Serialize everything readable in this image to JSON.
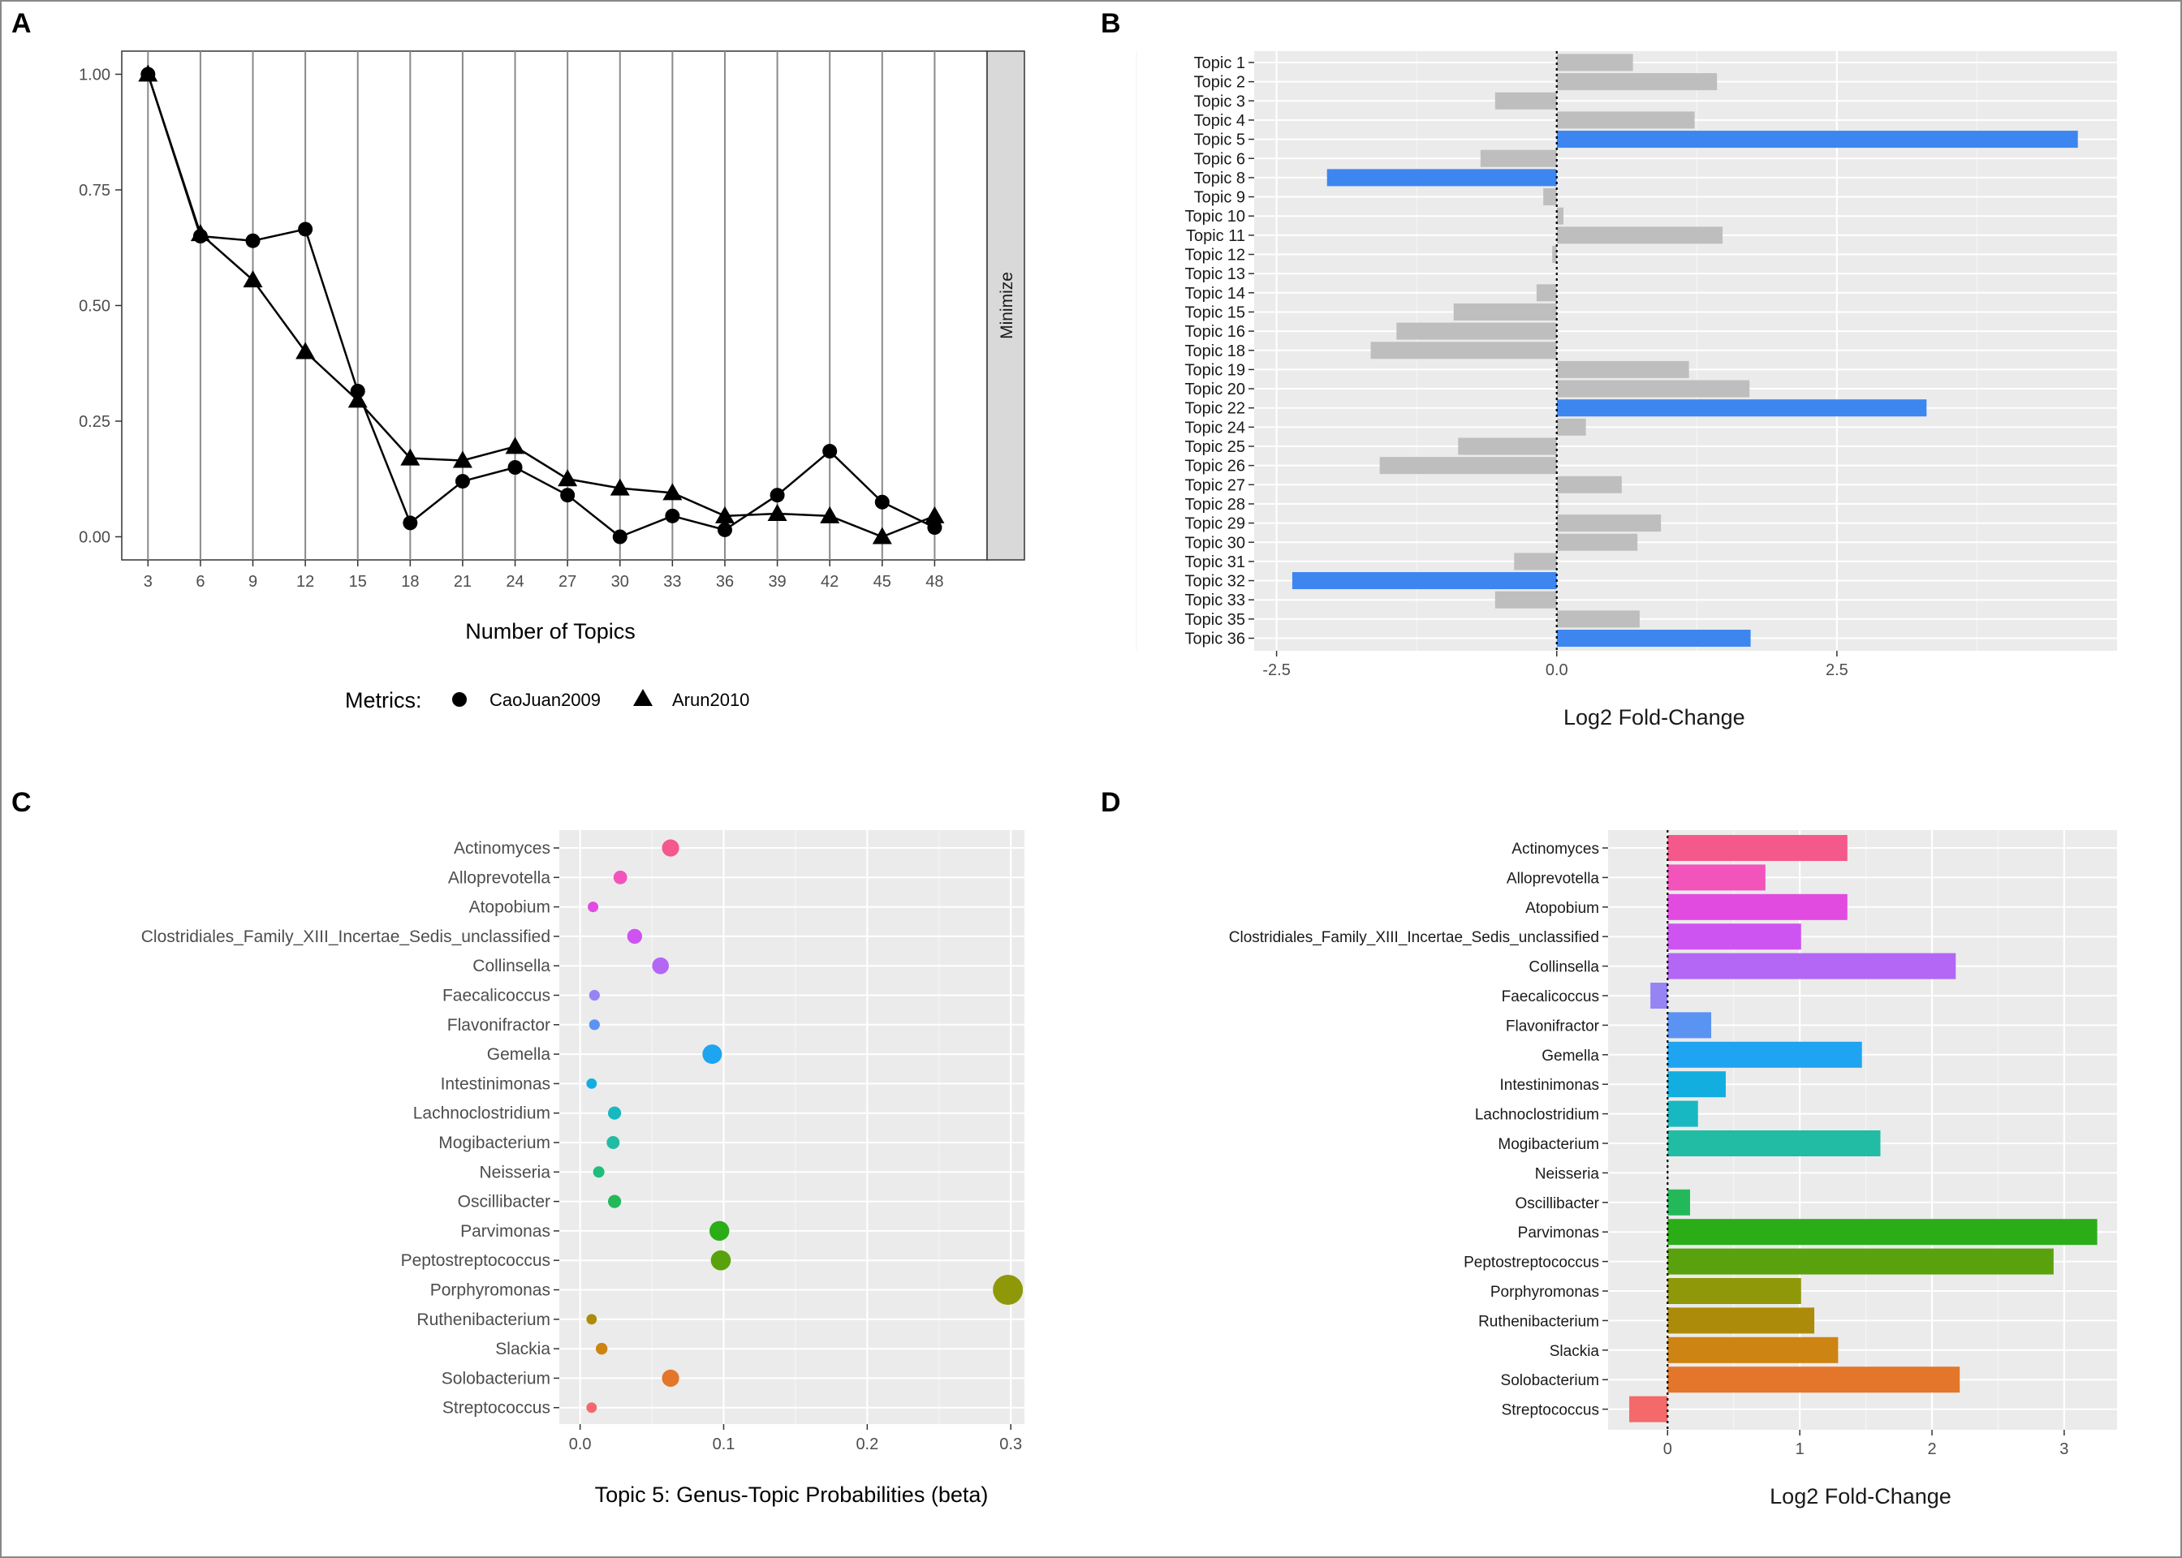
{
  "panels": {
    "A": "A",
    "B": "B",
    "C": "C",
    "D": "D"
  },
  "chart_data": [
    {
      "panel": "A",
      "type": "line",
      "xlabel": "Number of Topics",
      "ylabel": "",
      "facet_strip": "Minimize",
      "x_ticks": [
        "3",
        "6",
        "9",
        "12",
        "15",
        "18",
        "21",
        "24",
        "27",
        "30",
        "33",
        "36",
        "39",
        "42",
        "45",
        "48"
      ],
      "y_ticks": [
        "0.00",
        "0.25",
        "0.50",
        "0.75",
        "1.00"
      ],
      "ylim": [
        -0.05,
        1.05
      ],
      "xlim": [
        1.5,
        51
      ],
      "grid": "vertical",
      "legend": {
        "title": "Metrics:",
        "position": "bottom",
        "entries": [
          {
            "name": "CaoJuan2009",
            "shape": "circle"
          },
          {
            "name": "Arun2010",
            "shape": "triangle"
          }
        ]
      },
      "x": [
        3,
        6,
        9,
        12,
        15,
        18,
        21,
        24,
        27,
        30,
        33,
        36,
        39,
        42,
        45,
        48
      ],
      "series": [
        {
          "name": "CaoJuan2009",
          "shape": "circle",
          "values": [
            1.0,
            0.65,
            0.64,
            0.665,
            0.315,
            0.03,
            0.12,
            0.15,
            0.09,
            0.0,
            0.045,
            0.015,
            0.09,
            0.185,
            0.075,
            0.02
          ]
        },
        {
          "name": "Arun2010",
          "shape": "triangle",
          "values": [
            1.0,
            0.655,
            0.555,
            0.4,
            0.295,
            0.17,
            0.165,
            0.195,
            0.125,
            0.105,
            0.095,
            0.045,
            0.05,
            0.045,
            0.0,
            0.045
          ]
        }
      ]
    },
    {
      "panel": "B",
      "type": "bar",
      "orientation": "horizontal",
      "xlabel": "Log2 Fold-Change",
      "x_ticks": [
        "-2.5",
        "0.0",
        "2.5"
      ],
      "xlim": [
        -2.7,
        5.0
      ],
      "colors": {
        "default": "#bebebe",
        "highlight": "#3d86f0"
      },
      "categories": [
        "Topic 1",
        "Topic 2",
        "Topic 3",
        "Topic 4",
        "Topic 5",
        "Topic 6",
        "Topic 8",
        "Topic 9",
        "Topic 10",
        "Topic 11",
        "Topic 12",
        "Topic 13",
        "Topic 14",
        "Topic 15",
        "Topic 16",
        "Topic 18",
        "Topic 19",
        "Topic 20",
        "Topic 22",
        "Topic 24",
        "Topic 25",
        "Topic 26",
        "Topic 27",
        "Topic 28",
        "Topic 29",
        "Topic 30",
        "Topic 31",
        "Topic 32",
        "Topic 33",
        "Topic 35",
        "Topic 36"
      ],
      "values": [
        0.68,
        1.43,
        -0.55,
        1.23,
        4.65,
        -0.68,
        -2.05,
        -0.12,
        0.06,
        1.48,
        -0.04,
        0.0,
        -0.18,
        -0.92,
        -1.43,
        -1.66,
        1.18,
        1.72,
        3.3,
        0.26,
        -0.88,
        -1.58,
        0.58,
        0.02,
        0.93,
        0.72,
        -0.38,
        -2.36,
        -0.55,
        0.74,
        1.73
      ],
      "highlighted": [
        "Topic 5",
        "Topic 8",
        "Topic 22",
        "Topic 32",
        "Topic 36"
      ]
    },
    {
      "panel": "C",
      "type": "scatter",
      "xlabel": "Topic 5: Genus-Topic Probabilities (beta)",
      "x_ticks": [
        "0.0",
        "0.1",
        "0.2",
        "0.3"
      ],
      "xlim": [
        -0.0145,
        0.3095
      ],
      "categories": [
        "Actinomyces",
        "Alloprevotella",
        "Atopobium",
        "Clostridiales_Family_XIII_Incertae_Sedis_unclassified",
        "Collinsella",
        "Faecalicoccus",
        "Flavonifractor",
        "Gemella",
        "Intestinimonas",
        "Lachnoclostridium",
        "Mogibacterium",
        "Neisseria",
        "Oscillibacter",
        "Parvimonas",
        "Peptostreptococcus",
        "Porphyromonas",
        "Ruthenibacterium",
        "Slackia",
        "Solobacterium",
        "Streptococcus"
      ],
      "values": [
        0.063,
        0.028,
        0.009,
        0.038,
        0.056,
        0.01,
        0.01,
        0.092,
        0.008,
        0.024,
        0.023,
        0.013,
        0.024,
        0.097,
        0.098,
        0.298,
        0.008,
        0.015,
        0.063,
        0.008
      ],
      "colors": [
        "#f5588a",
        "#f254bb",
        "#e24be0",
        "#cd54f0",
        "#b467f5",
        "#9684f5",
        "#5b93f2",
        "#1ea4f0",
        "#13aee0",
        "#18b8c2",
        "#22bba4",
        "#1fbd7c",
        "#23b95a",
        "#2bad17",
        "#59a20d",
        "#8f9809",
        "#ad8b0a",
        "#cd8412",
        "#e3762b",
        "#f4696a"
      ]
    },
    {
      "panel": "D",
      "type": "bar",
      "orientation": "horizontal",
      "xlabel": "Log2 Fold-Change",
      "x_ticks": [
        "0",
        "1",
        "2",
        "3"
      ],
      "xlim": [
        -0.45,
        3.4
      ],
      "categories": [
        "Actinomyces",
        "Alloprevotella",
        "Atopobium",
        "Clostridiales_Family_XIII_Incertae_Sedis_unclassified",
        "Collinsella",
        "Faecalicoccus",
        "Flavonifractor",
        "Gemella",
        "Intestinimonas",
        "Lachnoclostridium",
        "Mogibacterium",
        "Neisseria",
        "Oscillibacter",
        "Parvimonas",
        "Peptostreptococcus",
        "Porphyromonas",
        "Ruthenibacterium",
        "Slackia",
        "Solobacterium",
        "Streptococcus"
      ],
      "values": [
        1.36,
        0.74,
        1.36,
        1.01,
        2.18,
        -0.13,
        0.33,
        1.47,
        0.44,
        0.23,
        1.61,
        0.0,
        0.17,
        3.25,
        2.92,
        1.01,
        1.11,
        1.29,
        2.21,
        -0.29
      ],
      "colors": [
        "#f5588a",
        "#f254bb",
        "#e24be0",
        "#cd54f0",
        "#b467f5",
        "#9684f5",
        "#5b93f2",
        "#1ea4f0",
        "#13aee0",
        "#18b8c2",
        "#22bba4",
        "#1fbd7c",
        "#23b95a",
        "#2bad17",
        "#59a20d",
        "#8f9809",
        "#ad8b0a",
        "#cd8412",
        "#e3762b",
        "#f4696a"
      ]
    }
  ]
}
